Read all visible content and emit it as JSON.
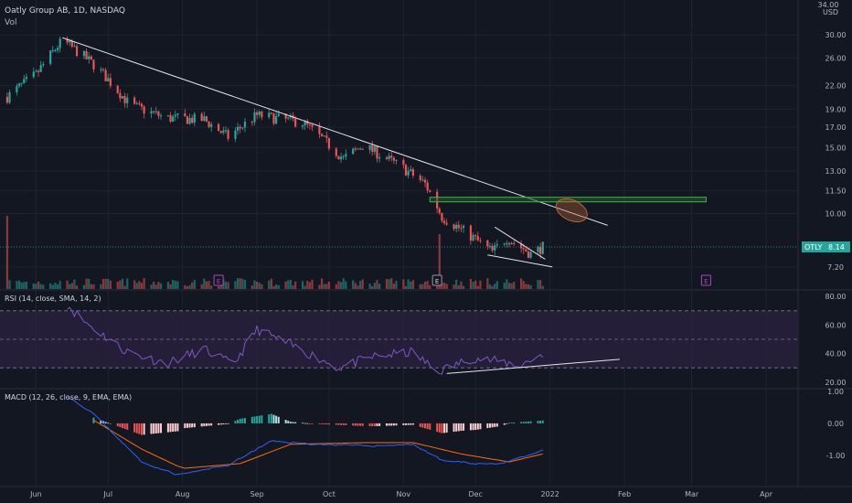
{
  "header": {
    "title": "Oatly Group AB, 1D, NASDAQ",
    "volume_label": "Vol"
  },
  "colors": {
    "background": "#131722",
    "grid": "#1f2330",
    "text": "#b2b5be",
    "up": "#26a69a",
    "down": "#ef5350",
    "rsi_line": "#7e57c2",
    "rsi_band": "#2a2140",
    "macd_line": "#2962ff",
    "signal_line": "#ff6d00",
    "trendline": "#e0e3eb",
    "zone_fill": "#1b5e20",
    "zone_stroke": "#4caf50",
    "ellipse": "#c0633a",
    "price_tag": "#26a69a"
  },
  "price_axis": {
    "currency": "USD"
  },
  "current_price": {
    "symbol": "OTLY",
    "value": "8.14",
    "price": 8.14
  },
  "earnings_markers": [
    {
      "label": "E",
      "date": "2021-08-16"
    },
    {
      "label": "E",
      "date": "2021-11-15"
    },
    {
      "label": "E",
      "date": "2022-03-07"
    }
  ],
  "time_labels": [
    {
      "label": "Jun",
      "date": "2021-06-01"
    },
    {
      "label": "Jul",
      "date": "2021-07-01"
    },
    {
      "label": "Aug",
      "date": "2021-08-01"
    },
    {
      "label": "Sep",
      "date": "2021-09-01"
    },
    {
      "label": "Oct",
      "date": "2021-10-01"
    },
    {
      "label": "Nov",
      "date": "2021-11-01"
    },
    {
      "label": "Dec",
      "date": "2021-12-01"
    },
    {
      "label": "2022",
      "date": "2022-01-01"
    },
    {
      "label": "Feb",
      "date": "2022-02-01"
    },
    {
      "label": "Mar",
      "date": "2022-03-01"
    },
    {
      "label": "Apr",
      "date": "2022-04-01"
    }
  ],
  "chart_data": [
    {
      "type": "candlestick",
      "title": "Oatly Group AB, 1D, NASDAQ",
      "yscale": "log",
      "y_ticks": [
        30.0,
        26.0,
        22.0,
        19.0,
        17.0,
        15.0,
        13.0,
        11.5,
        10.0,
        7.2
      ],
      "y_tick_labels": [
        "30.00",
        "26.00",
        "22.00",
        "19.00",
        "17.00",
        "15.00",
        "13.00",
        "11.50",
        "10.00",
        "7.20"
      ],
      "ylim": [
        6.8,
        34.0
      ],
      "top_tick_label": "34.00",
      "xlim": [
        "2021-05-17",
        "2022-04-20"
      ],
      "ohlc_anchors": [
        {
          "date": "2021-05-20",
          "close": 20.5
        },
        {
          "date": "2021-06-01",
          "close": 23.5
        },
        {
          "date": "2021-06-12",
          "close": 29.0
        },
        {
          "date": "2021-06-25",
          "close": 25.0
        },
        {
          "date": "2021-07-10",
          "close": 19.5
        },
        {
          "date": "2021-07-25",
          "close": 18.0
        },
        {
          "date": "2021-08-10",
          "close": 17.8
        },
        {
          "date": "2021-08-20",
          "close": 16.0
        },
        {
          "date": "2021-09-01",
          "close": 18.3
        },
        {
          "date": "2021-09-20",
          "close": 17.5
        },
        {
          "date": "2021-10-07",
          "close": 14.0
        },
        {
          "date": "2021-10-15",
          "close": 15.2
        },
        {
          "date": "2021-11-01",
          "close": 13.2
        },
        {
          "date": "2021-11-10",
          "close": 12.0
        },
        {
          "date": "2021-11-17",
          "close": 9.8
        },
        {
          "date": "2021-11-28",
          "close": 8.8
        },
        {
          "date": "2021-12-08",
          "close": 7.9
        },
        {
          "date": "2021-12-14",
          "close": 8.6
        },
        {
          "date": "2021-12-24",
          "close": 7.8
        },
        {
          "date": "2021-12-29",
          "close": 8.14
        }
      ],
      "volume_spikes": [
        {
          "date": "2021-05-20",
          "relative": 1.0
        },
        {
          "date": "2021-11-16",
          "relative": 0.75
        }
      ],
      "annotations": {
        "trendline": {
          "from": {
            "date": "2021-06-12",
            "price": 29.5
          },
          "to": {
            "date": "2022-01-25",
            "price": 9.3
          }
        },
        "resistance_zone": {
          "from_date": "2021-11-12",
          "to_date": "2022-03-07",
          "low": 10.85,
          "high": 11.05
        },
        "ellipse": {
          "date": "2022-01-10",
          "price": 10.2
        },
        "wedge": {
          "upper": [
            {
              "date": "2021-12-09",
              "price": 9.2
            },
            {
              "date": "2021-12-30",
              "price": 7.55
            }
          ],
          "lower": [
            {
              "date": "2021-12-06",
              "price": 7.75
            },
            {
              "date": "2022-01-02",
              "price": 7.2
            }
          ]
        }
      }
    },
    {
      "type": "line",
      "title": "RSI (14, close, SMA, 14, 2)",
      "y_ticks": [
        80.0,
        60.0,
        40.0,
        20.0
      ],
      "y_tick_labels": [
        "80.00",
        "60.00",
        "40.00",
        "20.00"
      ],
      "ylim": [
        20,
        80
      ],
      "bands": [
        70,
        50,
        30
      ],
      "anchors": [
        {
          "date": "2021-06-12",
          "value": 78
        },
        {
          "date": "2021-06-20",
          "value": 64
        },
        {
          "date": "2021-07-08",
          "value": 42
        },
        {
          "date": "2021-07-25",
          "value": 33
        },
        {
          "date": "2021-08-10",
          "value": 43
        },
        {
          "date": "2021-08-22",
          "value": 32
        },
        {
          "date": "2021-09-01",
          "value": 57
        },
        {
          "date": "2021-09-15",
          "value": 46
        },
        {
          "date": "2021-10-05",
          "value": 30
        },
        {
          "date": "2021-10-20",
          "value": 38
        },
        {
          "date": "2021-11-05",
          "value": 41
        },
        {
          "date": "2021-11-15",
          "value": 27
        },
        {
          "date": "2021-11-30",
          "value": 37
        },
        {
          "date": "2021-12-20",
          "value": 32
        },
        {
          "date": "2021-12-29",
          "value": 40
        }
      ],
      "divergence_line": {
        "from": {
          "date": "2021-11-19",
          "value": 26
        },
        "to": {
          "date": "2022-01-30",
          "value": 36
        }
      }
    },
    {
      "type": "bar+line",
      "title": "MACD (12, 26, close, 9, EMA, EMA)",
      "y_ticks": [
        1.0,
        0.0,
        -1.0
      ],
      "y_tick_labels": [
        "1.00",
        "0.00",
        "-1.00"
      ],
      "ylim": [
        -1.85,
        1.05
      ],
      "macd_anchors": [
        {
          "date": "2021-06-12",
          "value": 0.95
        },
        {
          "date": "2021-06-25",
          "value": 0.3
        },
        {
          "date": "2021-07-15",
          "value": -1.2
        },
        {
          "date": "2021-07-30",
          "value": -1.6
        },
        {
          "date": "2021-08-20",
          "value": -1.3
        },
        {
          "date": "2021-09-07",
          "value": -0.55
        },
        {
          "date": "2021-09-25",
          "value": -0.65
        },
        {
          "date": "2021-10-20",
          "value": -0.7
        },
        {
          "date": "2021-11-05",
          "value": -0.65
        },
        {
          "date": "2021-11-17",
          "value": -1.15
        },
        {
          "date": "2021-12-01",
          "value": -1.25
        },
        {
          "date": "2021-12-12",
          "value": -1.25
        },
        {
          "date": "2021-12-29",
          "value": -0.85
        }
      ],
      "signal_anchors": [
        {
          "date": "2021-06-25",
          "value": 0.1
        },
        {
          "date": "2021-07-15",
          "value": -0.8
        },
        {
          "date": "2021-08-01",
          "value": -1.4
        },
        {
          "date": "2021-08-25",
          "value": -1.25
        },
        {
          "date": "2021-09-15",
          "value": -0.65
        },
        {
          "date": "2021-10-15",
          "value": -0.6
        },
        {
          "date": "2021-11-05",
          "value": -0.6
        },
        {
          "date": "2021-11-25",
          "value": -0.95
        },
        {
          "date": "2021-12-15",
          "value": -1.2
        },
        {
          "date": "2021-12-29",
          "value": -0.95
        }
      ]
    }
  ]
}
